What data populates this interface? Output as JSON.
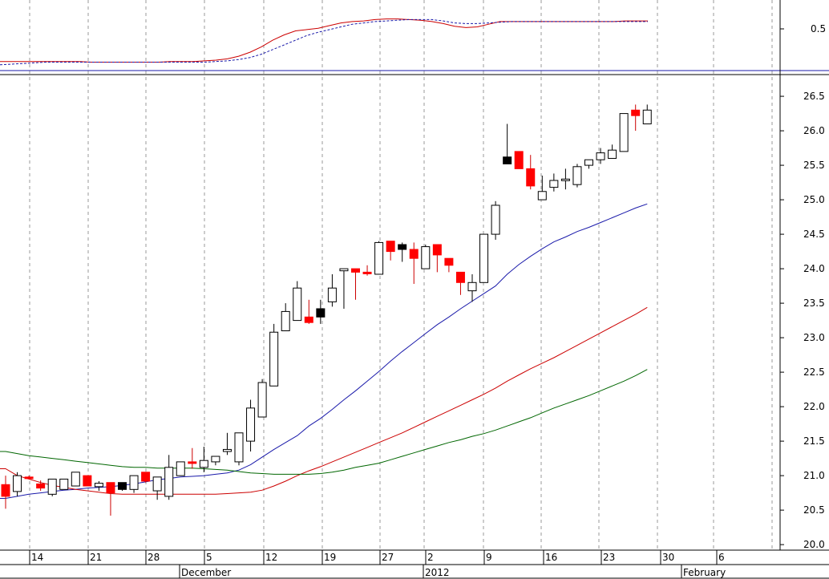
{
  "chart_data": {
    "type": "candlestick",
    "grid": "vertical dashed",
    "upper_panel": {
      "tick_labels": [
        "0.5"
      ],
      "series": [
        {
          "color": "#cc0000",
          "style": "solid",
          "values": [
            0.1,
            0.1,
            0.1,
            0.1,
            0.1,
            0.1,
            0.1,
            0.1,
            0.09,
            0.09,
            0.09,
            0.09,
            0.09,
            0.09,
            0.09,
            0.1,
            0.1,
            0.1,
            0.11,
            0.12,
            0.14,
            0.18,
            0.24,
            0.32,
            0.42,
            0.5,
            0.56,
            0.58,
            0.6,
            0.64,
            0.68,
            0.7,
            0.71,
            0.73,
            0.74,
            0.74,
            0.73,
            0.72,
            0.7,
            0.67,
            0.63,
            0.61,
            0.62,
            0.66,
            0.7,
            0.7,
            0.7,
            0.7,
            0.7,
            0.7,
            0.7,
            0.7,
            0.7,
            0.7,
            0.7,
            0.71,
            0.71,
            0.71
          ]
        },
        {
          "color": "#1a1aaa",
          "style": "dotted",
          "values": [
            0.05,
            0.06,
            0.07,
            0.08,
            0.09,
            0.09,
            0.09,
            0.09,
            0.09,
            0.09,
            0.09,
            0.09,
            0.09,
            0.09,
            0.09,
            0.09,
            0.09,
            0.09,
            0.09,
            0.1,
            0.11,
            0.13,
            0.16,
            0.21,
            0.28,
            0.35,
            0.42,
            0.49,
            0.54,
            0.58,
            0.62,
            0.66,
            0.68,
            0.7,
            0.71,
            0.72,
            0.73,
            0.73,
            0.73,
            0.71,
            0.68,
            0.67,
            0.67,
            0.68,
            0.69,
            0.7,
            0.7,
            0.7,
            0.7,
            0.7,
            0.7,
            0.7,
            0.7,
            0.7,
            0.7,
            0.7,
            0.7,
            0.7
          ]
        }
      ]
    },
    "main_panel": {
      "ylim": [
        19.92,
        26.78
      ],
      "y_ticks": [
        "20.0",
        "20.5",
        "21.0",
        "21.5",
        "22.0",
        "22.5",
        "23.0",
        "23.5",
        "24.0",
        "24.5",
        "25.0",
        "25.5",
        "26.0",
        "26.5"
      ],
      "candles": [
        {
          "o": 20.87,
          "h": 21.0,
          "l": 20.52,
          "c": 20.7,
          "col": "red"
        },
        {
          "o": 20.77,
          "h": 21.05,
          "l": 20.7,
          "c": 21.0,
          "col": "white"
        },
        {
          "o": 20.97,
          "h": 21.0,
          "l": 20.95,
          "c": 20.98,
          "col": "red"
        },
        {
          "o": 20.88,
          "h": 20.93,
          "l": 20.78,
          "c": 20.82,
          "col": "red"
        },
        {
          "o": 20.73,
          "h": 20.95,
          "l": 20.7,
          "c": 20.95,
          "col": "white"
        },
        {
          "o": 20.8,
          "h": 20.95,
          "l": 20.8,
          "c": 20.95,
          "col": "white"
        },
        {
          "o": 20.85,
          "h": 21.05,
          "l": 20.85,
          "c": 21.05,
          "col": "white"
        },
        {
          "o": 21.0,
          "h": 21.0,
          "l": 20.85,
          "c": 20.85,
          "col": "red"
        },
        {
          "o": 20.84,
          "h": 20.92,
          "l": 20.78,
          "c": 20.89,
          "col": "white"
        },
        {
          "o": 20.9,
          "h": 20.9,
          "l": 20.42,
          "c": 20.75,
          "col": "red"
        },
        {
          "o": 20.9,
          "h": 20.9,
          "l": 20.78,
          "c": 20.8,
          "col": "black"
        },
        {
          "o": 20.8,
          "h": 21.0,
          "l": 20.75,
          "c": 21.0,
          "col": "white"
        },
        {
          "o": 21.05,
          "h": 21.05,
          "l": 20.9,
          "c": 20.92,
          "col": "red"
        },
        {
          "o": 20.78,
          "h": 20.98,
          "l": 20.65,
          "c": 20.98,
          "col": "white"
        },
        {
          "o": 20.7,
          "h": 21.3,
          "l": 20.65,
          "c": 21.12,
          "col": "white"
        },
        {
          "o": 21.0,
          "h": 21.2,
          "l": 21.0,
          "c": 21.2,
          "col": "white"
        },
        {
          "o": 21.2,
          "h": 21.4,
          "l": 21.1,
          "c": 21.2,
          "col": "red"
        },
        {
          "o": 21.12,
          "h": 21.42,
          "l": 21.05,
          "c": 21.22,
          "col": "white"
        },
        {
          "o": 21.2,
          "h": 21.28,
          "l": 21.15,
          "c": 21.28,
          "col": "white"
        },
        {
          "o": 21.35,
          "h": 21.62,
          "l": 21.3,
          "c": 21.38,
          "col": "white"
        },
        {
          "o": 21.2,
          "h": 21.62,
          "l": 21.15,
          "c": 21.62,
          "col": "white"
        },
        {
          "o": 21.5,
          "h": 22.1,
          "l": 21.35,
          "c": 21.98,
          "col": "white"
        },
        {
          "o": 21.85,
          "h": 22.4,
          "l": 21.85,
          "c": 22.35,
          "col": "white"
        },
        {
          "o": 22.3,
          "h": 23.2,
          "l": 22.3,
          "c": 23.08,
          "col": "white"
        },
        {
          "o": 23.1,
          "h": 23.5,
          "l": 23.1,
          "c": 23.38,
          "col": "white"
        },
        {
          "o": 23.25,
          "h": 23.82,
          "l": 23.25,
          "c": 23.72,
          "col": "white"
        },
        {
          "o": 23.3,
          "h": 23.55,
          "l": 23.2,
          "c": 23.22,
          "col": "red"
        },
        {
          "o": 23.3,
          "h": 23.55,
          "l": 23.2,
          "c": 23.42,
          "col": "black"
        },
        {
          "o": 23.52,
          "h": 23.92,
          "l": 23.45,
          "c": 23.72,
          "col": "white"
        },
        {
          "o": 23.97,
          "h": 24.0,
          "l": 23.42,
          "c": 24.0,
          "col": "white"
        },
        {
          "o": 24.0,
          "h": 24.0,
          "l": 23.55,
          "c": 23.95,
          "col": "red"
        },
        {
          "o": 23.95,
          "h": 24.05,
          "l": 23.9,
          "c": 23.93,
          "col": "red"
        },
        {
          "o": 23.92,
          "h": 24.4,
          "l": 23.92,
          "c": 24.38,
          "col": "white"
        },
        {
          "o": 24.4,
          "h": 24.4,
          "l": 24.12,
          "c": 24.25,
          "col": "red"
        },
        {
          "o": 24.35,
          "h": 24.38,
          "l": 24.1,
          "c": 24.28,
          "col": "black"
        },
        {
          "o": 24.28,
          "h": 24.38,
          "l": 23.78,
          "c": 24.15,
          "col": "red"
        },
        {
          "o": 24.0,
          "h": 24.35,
          "l": 24.0,
          "c": 24.32,
          "col": "white"
        },
        {
          "o": 24.35,
          "h": 24.35,
          "l": 23.95,
          "c": 24.2,
          "col": "red"
        },
        {
          "o": 24.15,
          "h": 24.15,
          "l": 23.95,
          "c": 24.05,
          "col": "red"
        },
        {
          "o": 23.95,
          "h": 23.95,
          "l": 23.62,
          "c": 23.8,
          "col": "red"
        },
        {
          "o": 23.68,
          "h": 23.92,
          "l": 23.52,
          "c": 23.8,
          "col": "white"
        },
        {
          "o": 23.8,
          "h": 24.5,
          "l": 23.8,
          "c": 24.5,
          "col": "white"
        },
        {
          "o": 24.5,
          "h": 24.98,
          "l": 24.42,
          "c": 24.92,
          "col": "white"
        },
        {
          "o": 25.62,
          "h": 26.1,
          "l": 25.52,
          "c": 25.52,
          "col": "black"
        },
        {
          "o": 25.7,
          "h": 25.7,
          "l": 25.45,
          "c": 25.45,
          "col": "red"
        },
        {
          "o": 25.45,
          "h": 25.65,
          "l": 25.15,
          "c": 25.2,
          "col": "red"
        },
        {
          "o": 25.0,
          "h": 25.35,
          "l": 25.0,
          "c": 25.12,
          "col": "white"
        },
        {
          "o": 25.18,
          "h": 25.38,
          "l": 25.12,
          "c": 25.28,
          "col": "white"
        },
        {
          "o": 25.28,
          "h": 25.45,
          "l": 25.15,
          "c": 25.3,
          "col": "white"
        },
        {
          "o": 25.22,
          "h": 25.52,
          "l": 25.18,
          "c": 25.48,
          "col": "white"
        },
        {
          "o": 25.5,
          "h": 25.58,
          "l": 25.45,
          "c": 25.58,
          "col": "white"
        },
        {
          "o": 25.58,
          "h": 25.75,
          "l": 25.52,
          "c": 25.68,
          "col": "white"
        },
        {
          "o": 25.6,
          "h": 25.8,
          "l": 25.6,
          "c": 25.72,
          "col": "white"
        },
        {
          "o": 25.7,
          "h": 26.25,
          "l": 25.7,
          "c": 26.25,
          "col": "white"
        },
        {
          "o": 26.3,
          "h": 26.38,
          "l": 26.0,
          "c": 26.22,
          "col": "red"
        },
        {
          "o": 26.1,
          "h": 26.38,
          "l": 26.1,
          "c": 26.3,
          "col": "white"
        }
      ],
      "moving_averages": [
        {
          "color": "#1a1aaa",
          "values": [
            20.67,
            20.7,
            20.73,
            20.75,
            20.77,
            20.79,
            20.8,
            20.82,
            20.83,
            20.84,
            20.86,
            20.88,
            20.91,
            20.94,
            20.96,
            20.98,
            20.99,
            21.0,
            21.02,
            21.04,
            21.08,
            21.16,
            21.27,
            21.38,
            21.48,
            21.58,
            21.72,
            21.83,
            21.96,
            22.1,
            22.23,
            22.37,
            22.51,
            22.66,
            22.8,
            22.93,
            23.06,
            23.19,
            23.3,
            23.42,
            23.53,
            23.64,
            23.75,
            23.92,
            24.06,
            24.18,
            24.29,
            24.39,
            24.46,
            24.54,
            24.6,
            24.67,
            24.74,
            24.81,
            24.88,
            24.94
          ]
        },
        {
          "color": "#cc0000",
          "values": [
            21.1,
            21.0,
            20.95,
            20.9,
            20.86,
            20.83,
            20.8,
            20.78,
            20.76,
            20.74,
            20.73,
            20.73,
            20.73,
            20.73,
            20.73,
            20.73,
            20.73,
            20.73,
            20.73,
            20.74,
            20.75,
            20.76,
            20.79,
            20.85,
            20.92,
            21.0,
            21.07,
            21.13,
            21.2,
            21.27,
            21.34,
            21.41,
            21.48,
            21.55,
            21.62,
            21.7,
            21.78,
            21.86,
            21.94,
            22.02,
            22.1,
            22.18,
            22.27,
            22.37,
            22.46,
            22.55,
            22.63,
            22.71,
            22.8,
            22.89,
            22.98,
            23.07,
            23.16,
            23.25,
            23.34,
            23.44
          ]
        },
        {
          "color": "#006600",
          "values": [
            21.35,
            21.32,
            21.29,
            21.27,
            21.25,
            21.23,
            21.21,
            21.19,
            21.17,
            21.15,
            21.13,
            21.12,
            21.12,
            21.11,
            21.11,
            21.11,
            21.11,
            21.1,
            21.09,
            21.08,
            21.06,
            21.04,
            21.03,
            21.02,
            21.02,
            21.02,
            21.02,
            21.03,
            21.05,
            21.08,
            21.12,
            21.15,
            21.18,
            21.23,
            21.28,
            21.33,
            21.38,
            21.43,
            21.48,
            21.52,
            21.57,
            21.61,
            21.66,
            21.72,
            21.78,
            21.84,
            21.91,
            21.98,
            22.04,
            22.1,
            22.16,
            22.23,
            22.3,
            22.37,
            22.45,
            22.54
          ]
        }
      ]
    },
    "x_axis": {
      "day_labels": [
        "14",
        "21",
        "28",
        "5",
        "12",
        "19",
        "27",
        "2",
        "9",
        "16",
        "23",
        "30",
        "6"
      ],
      "month_labels": [
        "December",
        "2012",
        "February"
      ]
    }
  }
}
